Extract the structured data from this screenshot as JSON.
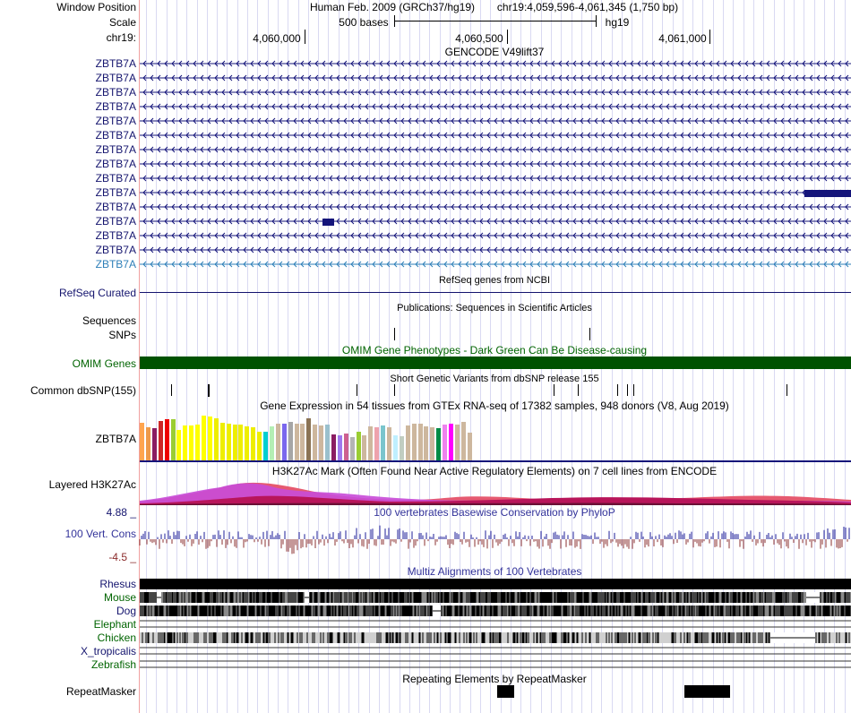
{
  "header": {
    "window_position_label": "Window Position",
    "scale_label": "Scale",
    "chrom_label": "chr19:",
    "assembly": "Human Feb. 2009 (GRCh37/hg19)",
    "position": "chr19:4,059,596-4,061,345 (1,750 bp)",
    "scale_text": "500 bases",
    "db": "hg19",
    "ruler_ticks": [
      "4,060,000",
      "4,060,500",
      "4,061,000"
    ]
  },
  "gencode": {
    "title": "GENCODE V49lift37",
    "gene_labels": [
      "ZBTB7A",
      "ZBTB7A",
      "ZBTB7A",
      "ZBTB7A",
      "ZBTB7A",
      "ZBTB7A",
      "ZBTB7A",
      "ZBTB7A",
      "ZBTB7A",
      "ZBTB7A",
      "ZBTB7A",
      "ZBTB7A",
      "ZBTB7A",
      "ZBTB7A",
      "ZBTB7A"
    ]
  },
  "refseq": {
    "label": "RefSeq Curated",
    "title": "RefSeq genes from NCBI"
  },
  "publications": {
    "label": "Sequences",
    "title": "Publications: Sequences in Scientific Articles"
  },
  "snps": {
    "label": "SNPs"
  },
  "omim": {
    "title": "OMIM Gene Phenotypes - Dark Green Can Be Disease-causing",
    "label": "OMIM Genes",
    "color": "#005200"
  },
  "dbsnp": {
    "title": "Short Genetic Variants from dbSNP release 155",
    "label": "Common dbSNP(155)"
  },
  "gtex": {
    "title": "Gene Expression in 54 tissues from GTEx RNA-seq of 17382 samples, 948 donors (V8, Aug 2019)",
    "label": "ZBTB7A",
    "levels": [
      42,
      37,
      36,
      44,
      46,
      46,
      34,
      39,
      39,
      40,
      50,
      49,
      47,
      42,
      41,
      40,
      40,
      38,
      37,
      32,
      32,
      38,
      41,
      41,
      43,
      41,
      41,
      47,
      40,
      39,
      40,
      29,
      28,
      30,
      26,
      32,
      28,
      38,
      37,
      39,
      37,
      28,
      27,
      39,
      41,
      41,
      38,
      37,
      36,
      40,
      41,
      40,
      43,
      31
    ],
    "colors": [
      "#ffa54f",
      "#ee9a49",
      "#8b1c62",
      "#cd2626",
      "#ee0000",
      "#9acd32",
      "#ffff00",
      "#ffff00",
      "#ffff00",
      "#ffff00",
      "#ffff00",
      "#ffff00",
      "#eeee00",
      "#eeee00",
      "#eeee00",
      "#eeee00",
      "#eeee00",
      "#eeee00",
      "#eeee00",
      "#eeee00",
      "#00ced1",
      "#b4eeb4",
      "#cdb79e",
      "#7a67ee",
      "#a6a6a6",
      "#cdb79e",
      "#cdb79e",
      "#8b7355",
      "#cdb79e",
      "#cdb79e",
      "#9ac0cd",
      "#8b1c62",
      "#9f79ee",
      "#cd6090",
      "#b4b4b4",
      "#9acd32",
      "#cdb79e",
      "#cdb79e",
      "#eea2ad",
      "#7ac5cd",
      "#cdb79e",
      "#bfefff",
      "#c1cdc1",
      "#cdb79e",
      "#cdb79e",
      "#cdb79e",
      "#cdb79e",
      "#cdb79e",
      "#008b45",
      "#ee82ee",
      "#ff00ff",
      "#cdb79e",
      "#cdb79e",
      "#cdb79e"
    ]
  },
  "h3k27ac": {
    "title": "H3K27Ac Mark (Often Found Near Active Regulatory Elements) on 7 cell lines from ENCODE",
    "label": "Layered H3K27Ac"
  },
  "phylop": {
    "title": "100 vertebrates Basewise Conservation by PhyloP",
    "label": "100 Vert. Cons",
    "max": "4.88 _",
    "min": "-4.5 _"
  },
  "multiz": {
    "title": "Multiz Alignments of 100 Vertebrates",
    "species": [
      {
        "name": "Rhesus",
        "color": "#14146e"
      },
      {
        "name": "Mouse",
        "color": "#006400"
      },
      {
        "name": "Dog",
        "color": "#14146e"
      },
      {
        "name": "Elephant",
        "color": "#006400"
      },
      {
        "name": "Chicken",
        "color": "#006400"
      },
      {
        "name": "X_tropicalis",
        "color": "#14146e"
      },
      {
        "name": "Zebrafish",
        "color": "#006400"
      }
    ]
  },
  "repeatmasker": {
    "title": "Repeating Elements by RepeatMasker",
    "label": "RepeatMasker"
  }
}
